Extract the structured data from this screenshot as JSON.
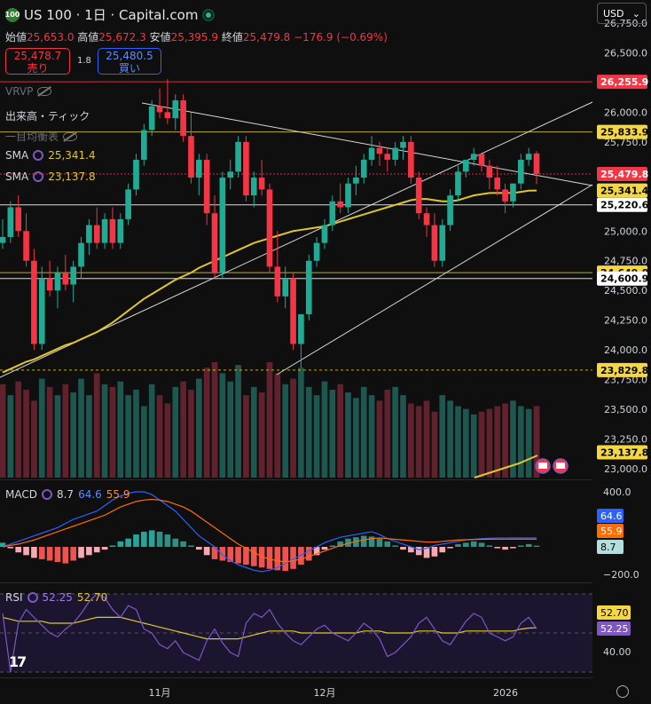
{
  "header": {
    "symbol_icon": "100",
    "title": "US 100 · 1日 · Capital.com",
    "ohlc": [
      {
        "label": "始値",
        "value": "25,653.0"
      },
      {
        "label": "高値",
        "value": "25,672.3"
      },
      {
        "label": "安値",
        "value": "25,395.9"
      },
      {
        "label": "終値",
        "value": "25,479.8"
      }
    ],
    "change": "−176.9 (−0.69%)",
    "sell_price": "25,478.7",
    "sell_label": "売り",
    "spread": "1.8",
    "buy_price": "25,480.5",
    "buy_label": "買い",
    "currency": "USD",
    "currency_chevron": "chevron-down-icon"
  },
  "indicators": {
    "vrvp": "VRVP",
    "volume": "出来高・ティック",
    "ichimoku": "一目均衡表",
    "sma1_label": "SMA",
    "sma1_value": "25,341.4",
    "sma2_label": "SMA",
    "sma2_value": "23,137.8",
    "macd_label": "MACD",
    "macd_v1": "8.7",
    "macd_v2": "64.6",
    "macd_v3": "55.9",
    "rsi_label": "RSI",
    "rsi_v1": "52.25",
    "rsi_v2": "52.70"
  },
  "colors": {
    "up": "#22ab94",
    "down": "#f23645",
    "sma1": "#e0c62e",
    "sma2": "#e0c62e",
    "macd": "#2962ff",
    "signal": "#ff6d00",
    "rsi": "#7e57c2",
    "rsi_ma": "#e0c62e"
  },
  "chart_data": [
    {
      "type": "candlestick",
      "title": "US 100 · 1日 · Capital.com",
      "price_axis_ticks": [
        "26,750.0",
        "26,500.0",
        "26,250.0",
        "26,000.0",
        "25,750.0",
        "25,500.0",
        "25,250.0",
        "25,000.0",
        "24,750.0",
        "24,500.0",
        "24,250.0",
        "24,000.0",
        "23,750.0",
        "23,500.0",
        "23,250.0",
        "23,000.0"
      ],
      "ylim": [
        22950,
        26900
      ],
      "x_labels": [
        "11月",
        "12月",
        "2026"
      ],
      "price_labels": [
        {
          "value": 26255.9,
          "text": "26,255.9",
          "style": "red-line"
        },
        {
          "value": 25833.9,
          "text": "25,833.9",
          "style": "yellow-line"
        },
        {
          "value": 25479.8,
          "text": "25,479.8",
          "style": "last-price"
        },
        {
          "value": 25341.4,
          "text": "25,341.4",
          "style": "sma"
        },
        {
          "value": 25220.6,
          "text": "25,220.6",
          "style": "white-line"
        },
        {
          "value": 24649.8,
          "text": "24,649.8",
          "style": "yellow-line"
        },
        {
          "value": 24600.9,
          "text": "24,600.9",
          "style": "white-line"
        },
        {
          "value": 23829.8,
          "text": "23,829.8",
          "style": "yellow-dotted"
        },
        {
          "value": 23137.8,
          "text": "23,137.8",
          "style": "sma"
        }
      ],
      "candles": [
        [
          24900,
          25100,
          24850,
          24950
        ],
        [
          24950,
          25250,
          24900,
          25200
        ],
        [
          25200,
          25300,
          24950,
          25000
        ],
        [
          25000,
          25150,
          24700,
          24750
        ],
        [
          24750,
          24850,
          24000,
          24050
        ],
        [
          24050,
          24700,
          24000,
          24600
        ],
        [
          24600,
          24750,
          24450,
          24500
        ],
        [
          24500,
          24700,
          24350,
          24650
        ],
        [
          24650,
          24800,
          24500,
          24550
        ],
        [
          24550,
          24750,
          24400,
          24700
        ],
        [
          24700,
          24950,
          24600,
          24900
        ],
        [
          24900,
          25100,
          24800,
          25050
        ],
        [
          25050,
          25200,
          24850,
          24900
        ],
        [
          24900,
          25150,
          24850,
          25100
        ],
        [
          25100,
          25200,
          24850,
          24900
        ],
        [
          24900,
          25150,
          24850,
          25100
        ],
        [
          25100,
          25400,
          25050,
          25350
        ],
        [
          25350,
          25650,
          25300,
          25600
        ],
        [
          25600,
          25900,
          25550,
          25850
        ],
        [
          25850,
          26100,
          25800,
          26050
        ],
        [
          26050,
          26200,
          25950,
          26000
        ],
        [
          26000,
          26280,
          25900,
          25950
        ],
        [
          25950,
          26150,
          25850,
          26100
        ],
        [
          26100,
          26150,
          25750,
          25800
        ],
        [
          25800,
          26000,
          25400,
          25450
        ],
        [
          25450,
          25650,
          25300,
          25600
        ],
        [
          25600,
          25650,
          25050,
          25150
        ],
        [
          25150,
          25300,
          24600,
          24650
        ],
        [
          24650,
          25500,
          24600,
          25450
        ],
        [
          25450,
          25600,
          25350,
          25500
        ],
        [
          25500,
          25800,
          25450,
          25750
        ],
        [
          25750,
          25800,
          25250,
          25300
        ],
        [
          25300,
          25500,
          25200,
          25450
        ],
        [
          25450,
          25600,
          25300,
          25350
        ],
        [
          25350,
          25400,
          24650,
          24700
        ],
        [
          24700,
          25000,
          24400,
          24450
        ],
        [
          24450,
          24700,
          24350,
          24600
        ],
        [
          24600,
          24650,
          24000,
          24050
        ],
        [
          24050,
          24300,
          23850,
          24300
        ],
        [
          24300,
          24800,
          24250,
          24750
        ],
        [
          24750,
          24950,
          24700,
          24900
        ],
        [
          24900,
          25100,
          24850,
          25050
        ],
        [
          25050,
          25300,
          25000,
          25250
        ],
        [
          25250,
          25400,
          25150,
          25200
        ],
        [
          25200,
          25450,
          25150,
          25400
        ],
        [
          25400,
          25550,
          25300,
          25450
        ],
        [
          25450,
          25650,
          25400,
          25600
        ],
        [
          25600,
          25800,
          25550,
          25700
        ],
        [
          25700,
          25750,
          25550,
          25650
        ],
        [
          25650,
          25700,
          25500,
          25600
        ],
        [
          25600,
          25750,
          25550,
          25700
        ],
        [
          25700,
          25800,
          25600,
          25750
        ],
        [
          25750,
          25800,
          25400,
          25450
        ],
        [
          25450,
          25500,
          25100,
          25150
        ],
        [
          25150,
          25200,
          24950,
          25050
        ],
        [
          25050,
          25150,
          24700,
          24750
        ],
        [
          24750,
          25100,
          24700,
          25050
        ],
        [
          25050,
          25350,
          25000,
          25300
        ],
        [
          25300,
          25550,
          25250,
          25500
        ],
        [
          25500,
          25600,
          25450,
          25600
        ],
        [
          25600,
          25700,
          25550,
          25650
        ],
        [
          25650,
          25650,
          25500,
          25550
        ],
        [
          25550,
          25600,
          25350,
          25450
        ],
        [
          25450,
          25550,
          25300,
          25350
        ],
        [
          25350,
          25400,
          25150,
          25250
        ],
        [
          25250,
          25400,
          25200,
          25400
        ],
        [
          25400,
          25650,
          25350,
          25600
        ],
        [
          25600,
          25700,
          25550,
          25650
        ],
        [
          25653,
          25672.3,
          25395.9,
          25479.8
        ]
      ],
      "sma_fast": [
        23810,
        23840,
        23870,
        23900,
        23920,
        23950,
        23980,
        24010,
        24040,
        24060,
        24090,
        24120,
        24150,
        24190,
        24230,
        24280,
        24330,
        24380,
        24430,
        24470,
        24510,
        24550,
        24590,
        24620,
        24650,
        24690,
        24720,
        24750,
        24780,
        24810,
        24840,
        24870,
        24900,
        24920,
        24940,
        24960,
        24980,
        25000,
        25010,
        25020,
        25030,
        25040,
        25060,
        25080,
        25100,
        25120,
        25140,
        25160,
        25180,
        25200,
        25220,
        25240,
        25260,
        25270,
        25270,
        25260,
        25250,
        25250,
        25260,
        25280,
        25300,
        25310,
        25320,
        25320,
        25320,
        25320,
        25330,
        25340,
        25341.4
      ],
      "volume": [
        340,
        300,
        350,
        320,
        280,
        360,
        330,
        300,
        340,
        310,
        360,
        300,
        380,
        340,
        330,
        350,
        300,
        320,
        260,
        340,
        300,
        270,
        330,
        350,
        320,
        360,
        400,
        420,
        380,
        350,
        410,
        300,
        330,
        310,
        420,
        380,
        340,
        360,
        400,
        330,
        300,
        350,
        320,
        340,
        310,
        290,
        330,
        300,
        280,
        320,
        330,
        300,
        270,
        260,
        280,
        240,
        300,
        280,
        260,
        250,
        230,
        240,
        250,
        260,
        270,
        280,
        260,
        250,
        260
      ],
      "volume_up": [
        0,
        1,
        0,
        0,
        0,
        1,
        0,
        1,
        0,
        1,
        1,
        1,
        0,
        1,
        0,
        1,
        1,
        1,
        1,
        1,
        0,
        0,
        1,
        0,
        0,
        1,
        0,
        0,
        1,
        1,
        1,
        0,
        1,
        0,
        0,
        0,
        1,
        0,
        1,
        1,
        1,
        1,
        1,
        0,
        1,
        1,
        1,
        1,
        0,
        0,
        1,
        1,
        0,
        0,
        0,
        0,
        1,
        1,
        1,
        1,
        1,
        0,
        0,
        0,
        0,
        1,
        1,
        1,
        0
      ],
      "sma_slow": [
        23137.8
      ]
    },
    {
      "type": "line",
      "name": "MACD",
      "ticks": [
        "400.0",
        "−200.0"
      ],
      "values_labels": [
        "64.6",
        "55.9",
        "8.7"
      ]
    },
    {
      "type": "line",
      "name": "RSI",
      "ticks": [
        "40.00"
      ],
      "values_labels": [
        "52.70",
        "52.25"
      ]
    }
  ]
}
